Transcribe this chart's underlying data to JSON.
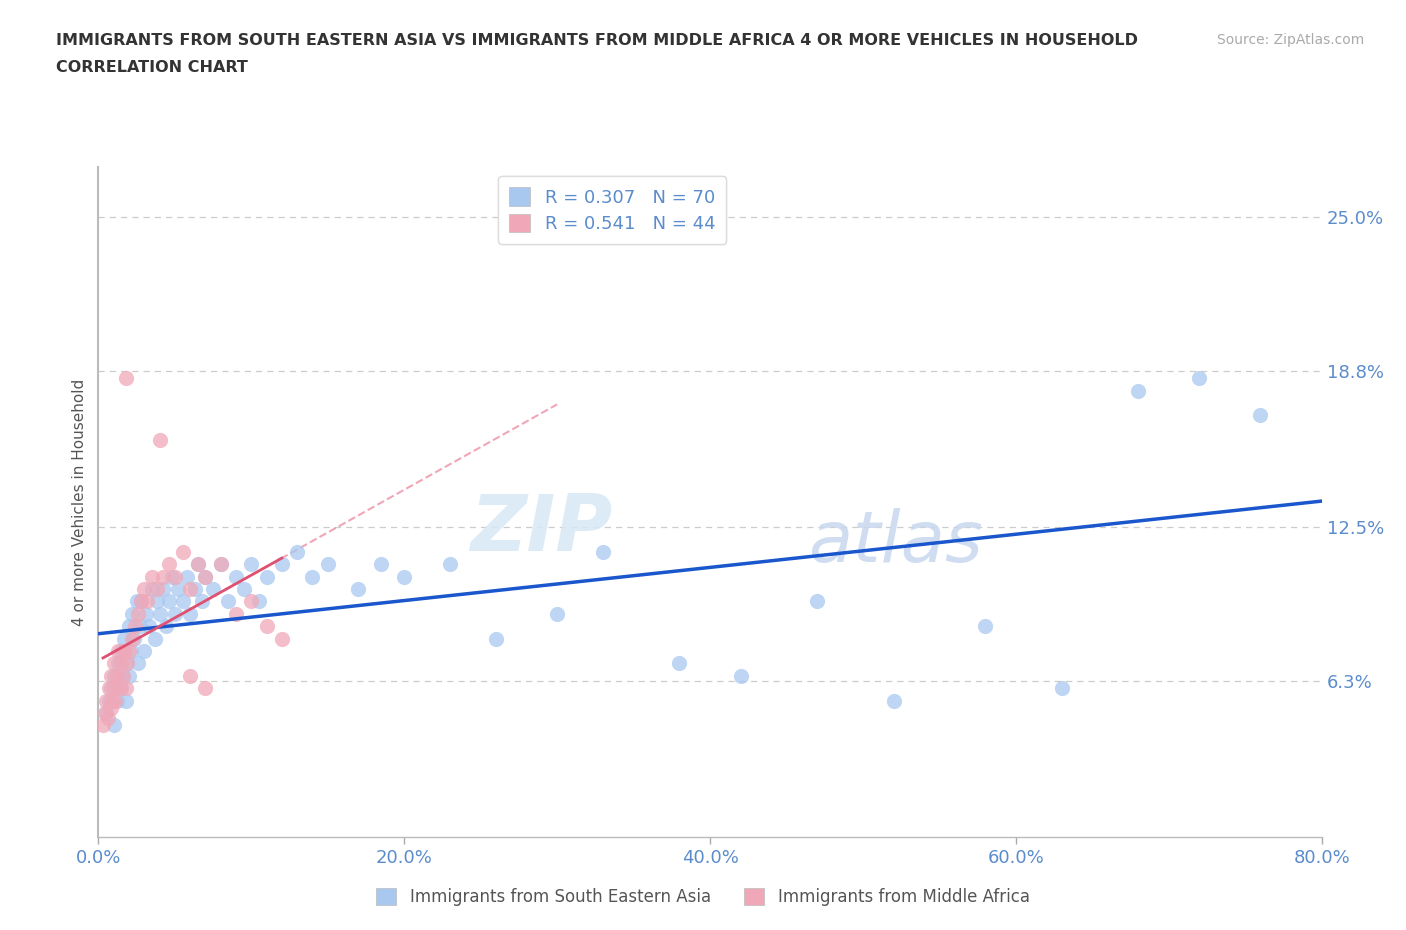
{
  "title_line1": "IMMIGRANTS FROM SOUTH EASTERN ASIA VS IMMIGRANTS FROM MIDDLE AFRICA 4 OR MORE VEHICLES IN HOUSEHOLD",
  "title_line2": "CORRELATION CHART",
  "source_text": "Source: ZipAtlas.com",
  "watermark_zip": "ZIP",
  "watermark_atlas": "atlas",
  "xlabel": "",
  "ylabel": "4 or more Vehicles in Household",
  "xlim": [
    0.0,
    0.8
  ],
  "ylim": [
    0.0,
    0.27
  ],
  "xtick_labels": [
    "0.0%",
    "20.0%",
    "40.0%",
    "60.0%",
    "80.0%"
  ],
  "xtick_vals": [
    0.0,
    0.2,
    0.4,
    0.6,
    0.8
  ],
  "ytick_labels_right": [
    "6.3%",
    "12.5%",
    "18.8%",
    "25.0%"
  ],
  "ytick_vals_right": [
    0.063,
    0.125,
    0.188,
    0.25
  ],
  "r_blue": 0.307,
  "n_blue": 70,
  "r_pink": 0.541,
  "n_pink": 44,
  "blue_color": "#A8C8F0",
  "pink_color": "#F0A8B8",
  "trend_blue_color": "#1A56CC",
  "trend_pink_color": "#E05070",
  "legend_label_blue": "Immigrants from South Eastern Asia",
  "legend_label_pink": "Immigrants from Middle Africa",
  "blue_scatter_x": [
    0.005,
    0.007,
    0.008,
    0.01,
    0.01,
    0.012,
    0.013,
    0.015,
    0.015,
    0.016,
    0.017,
    0.018,
    0.019,
    0.02,
    0.02,
    0.021,
    0.022,
    0.023,
    0.025,
    0.026,
    0.027,
    0.028,
    0.03,
    0.031,
    0.033,
    0.035,
    0.037,
    0.038,
    0.04,
    0.042,
    0.044,
    0.046,
    0.048,
    0.05,
    0.052,
    0.055,
    0.058,
    0.06,
    0.063,
    0.065,
    0.068,
    0.07,
    0.075,
    0.08,
    0.085,
    0.09,
    0.095,
    0.1,
    0.105,
    0.11,
    0.12,
    0.13,
    0.14,
    0.15,
    0.17,
    0.185,
    0.2,
    0.23,
    0.26,
    0.3,
    0.33,
    0.38,
    0.42,
    0.47,
    0.52,
    0.58,
    0.63,
    0.68,
    0.72,
    0.76
  ],
  "blue_scatter_y": [
    0.05,
    0.055,
    0.06,
    0.045,
    0.065,
    0.055,
    0.07,
    0.06,
    0.075,
    0.065,
    0.08,
    0.055,
    0.07,
    0.065,
    0.085,
    0.075,
    0.09,
    0.08,
    0.095,
    0.07,
    0.085,
    0.095,
    0.075,
    0.09,
    0.085,
    0.1,
    0.08,
    0.095,
    0.09,
    0.1,
    0.085,
    0.095,
    0.105,
    0.09,
    0.1,
    0.095,
    0.105,
    0.09,
    0.1,
    0.11,
    0.095,
    0.105,
    0.1,
    0.11,
    0.095,
    0.105,
    0.1,
    0.11,
    0.095,
    0.105,
    0.11,
    0.115,
    0.105,
    0.11,
    0.1,
    0.11,
    0.105,
    0.11,
    0.08,
    0.09,
    0.115,
    0.07,
    0.065,
    0.095,
    0.055,
    0.085,
    0.06,
    0.18,
    0.185,
    0.17
  ],
  "pink_scatter_x": [
    0.003,
    0.004,
    0.005,
    0.006,
    0.007,
    0.008,
    0.008,
    0.009,
    0.01,
    0.01,
    0.011,
    0.012,
    0.013,
    0.014,
    0.015,
    0.016,
    0.017,
    0.018,
    0.019,
    0.02,
    0.022,
    0.024,
    0.026,
    0.028,
    0.03,
    0.032,
    0.035,
    0.038,
    0.042,
    0.046,
    0.05,
    0.055,
    0.06,
    0.065,
    0.07,
    0.08,
    0.09,
    0.1,
    0.11,
    0.12,
    0.018,
    0.04,
    0.06,
    0.07
  ],
  "pink_scatter_y": [
    0.045,
    0.05,
    0.055,
    0.048,
    0.06,
    0.052,
    0.065,
    0.055,
    0.06,
    0.07,
    0.055,
    0.065,
    0.075,
    0.06,
    0.07,
    0.065,
    0.075,
    0.06,
    0.07,
    0.075,
    0.08,
    0.085,
    0.09,
    0.095,
    0.1,
    0.095,
    0.105,
    0.1,
    0.105,
    0.11,
    0.105,
    0.115,
    0.1,
    0.11,
    0.105,
    0.11,
    0.09,
    0.095,
    0.085,
    0.08,
    0.185,
    0.16,
    0.065,
    0.06
  ]
}
